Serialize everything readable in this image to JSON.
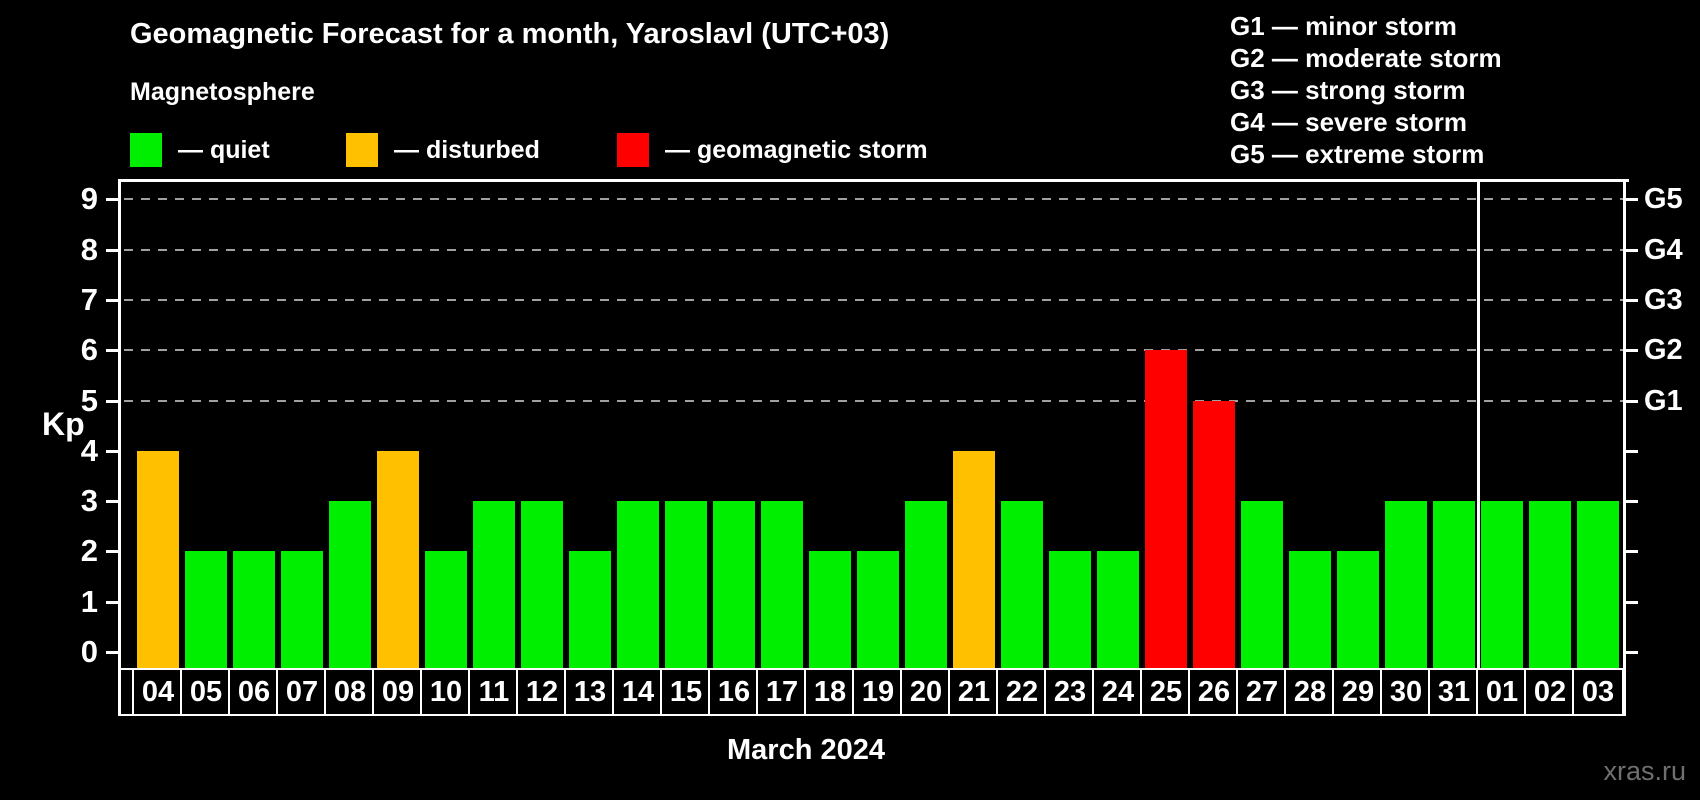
{
  "title": "Geomagnetic Forecast for a month, Yaroslavl (UTC+03)",
  "subtitle": "Magnetosphere",
  "watermark": "xras.ru",
  "palette": {
    "quiet": "#00ee00",
    "disturbed": "#ffc000",
    "storm": "#ff0000",
    "axis": "#ffffff",
    "grid": "#a0a0a0",
    "background": "#000000",
    "watermark_color": "#6f6f6f"
  },
  "legend": {
    "items": [
      {
        "state": "quiet",
        "label": "— quiet"
      },
      {
        "state": "disturbed",
        "label": "— disturbed"
      },
      {
        "state": "storm",
        "label": "— geomagnetic storm"
      }
    ]
  },
  "g_scale_legend": {
    "items": [
      "G1 — minor storm",
      "G2 — moderate storm",
      "G3 — strong storm",
      "G4 — severe storm",
      "G5 — extreme storm"
    ]
  },
  "chart_data": {
    "type": "bar",
    "title": "Geomagnetic Forecast for a month, Yaroslavl (UTC+03)",
    "ylabel": "Kp",
    "xlabel": "March 2024",
    "ylim": [
      0,
      9
    ],
    "y_ticks": [
      0,
      1,
      2,
      3,
      4,
      5,
      6,
      7,
      8,
      9
    ],
    "grid_levels": [
      5,
      6,
      7,
      8,
      9
    ],
    "grid_style": "dashed",
    "right_axis_labels": [
      {
        "label": "G1",
        "value": 5
      },
      {
        "label": "G2",
        "value": 6
      },
      {
        "label": "G3",
        "value": 7
      },
      {
        "label": "G4",
        "value": 8
      },
      {
        "label": "G5",
        "value": 9
      }
    ],
    "month_separator_before": "01",
    "days": [
      {
        "label": "04",
        "value": 4,
        "state": "disturbed"
      },
      {
        "label": "05",
        "value": 2,
        "state": "quiet"
      },
      {
        "label": "06",
        "value": 2,
        "state": "quiet"
      },
      {
        "label": "07",
        "value": 2,
        "state": "quiet"
      },
      {
        "label": "08",
        "value": 3,
        "state": "quiet"
      },
      {
        "label": "09",
        "value": 4,
        "state": "disturbed"
      },
      {
        "label": "10",
        "value": 2,
        "state": "quiet"
      },
      {
        "label": "11",
        "value": 3,
        "state": "quiet"
      },
      {
        "label": "12",
        "value": 3,
        "state": "quiet"
      },
      {
        "label": "13",
        "value": 2,
        "state": "quiet"
      },
      {
        "label": "14",
        "value": 3,
        "state": "quiet"
      },
      {
        "label": "15",
        "value": 3,
        "state": "quiet"
      },
      {
        "label": "16",
        "value": 3,
        "state": "quiet"
      },
      {
        "label": "17",
        "value": 3,
        "state": "quiet"
      },
      {
        "label": "18",
        "value": 2,
        "state": "quiet"
      },
      {
        "label": "19",
        "value": 2,
        "state": "quiet"
      },
      {
        "label": "20",
        "value": 3,
        "state": "quiet"
      },
      {
        "label": "21",
        "value": 4,
        "state": "disturbed"
      },
      {
        "label": "22",
        "value": 3,
        "state": "quiet"
      },
      {
        "label": "23",
        "value": 2,
        "state": "quiet"
      },
      {
        "label": "24",
        "value": 2,
        "state": "quiet"
      },
      {
        "label": "25",
        "value": 6,
        "state": "storm"
      },
      {
        "label": "26",
        "value": 5,
        "state": "storm"
      },
      {
        "label": "27",
        "value": 3,
        "state": "quiet"
      },
      {
        "label": "28",
        "value": 2,
        "state": "quiet"
      },
      {
        "label": "29",
        "value": 2,
        "state": "quiet"
      },
      {
        "label": "30",
        "value": 3,
        "state": "quiet"
      },
      {
        "label": "31",
        "value": 3,
        "state": "quiet"
      },
      {
        "label": "01",
        "value": 3,
        "state": "quiet"
      },
      {
        "label": "02",
        "value": 3,
        "state": "quiet"
      },
      {
        "label": "03",
        "value": 3,
        "state": "quiet"
      }
    ]
  }
}
